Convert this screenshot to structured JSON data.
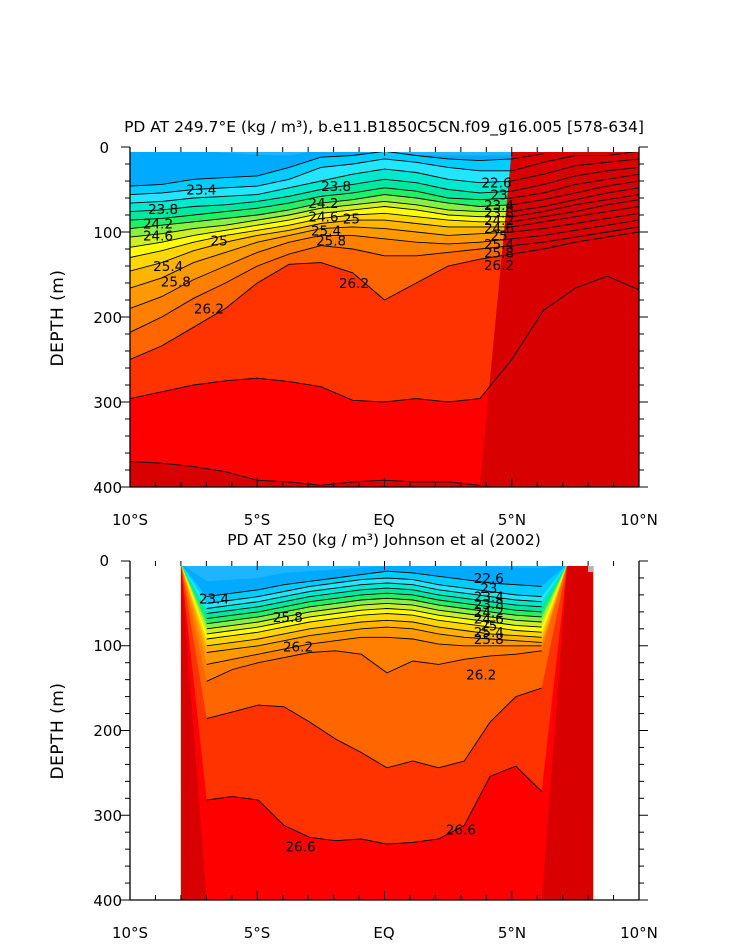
{
  "chart_data": [
    {
      "type": "contour",
      "title": "PD AT 249.7°E (kg / m³), b.e11.B1850C5CN.f09_g16.005 [578-634]",
      "ylabel": "DEPTH (m)",
      "xlabel": "",
      "x_ticks": [
        "10°S",
        "5°S",
        "EQ",
        "5°N",
        "10°N"
      ],
      "y_ticks": [
        "0",
        "100",
        "200",
        "300",
        "400"
      ],
      "xlim": [
        -10,
        10
      ],
      "ylim": [
        400,
        0
      ],
      "fill_xlim": [
        -10,
        10
      ],
      "bands": [
        {
          "depths": [
            -1,
            1,
            4,
            7,
            9,
            10,
            -1,
            -1,
            -1,
            10,
            10,
            10,
            10,
            9,
            -1,
            -1,
            -1
          ],
          "color": "#00aaff"
        },
        {
          "depths": [
            46,
            44,
            38,
            36,
            34,
            24,
            12,
            10,
            5,
            10,
            14,
            16,
            14,
            8,
            -1,
            -1,
            -1
          ],
          "color": "#00ccff"
        },
        {
          "depths": [
            56,
            54,
            50,
            48,
            46,
            38,
            24,
            20,
            14,
            18,
            24,
            28,
            28,
            18,
            10,
            10,
            5
          ],
          "color": "#22e5ff"
        },
        {
          "depths": [
            66,
            64,
            60,
            58,
            56,
            48,
            40,
            32,
            26,
            30,
            38,
            42,
            40,
            32,
            22,
            18,
            14
          ],
          "color": "#00e8d0"
        },
        {
          "depths": [
            76,
            74,
            70,
            68,
            64,
            58,
            50,
            44,
            38,
            42,
            50,
            54,
            52,
            44,
            34,
            28,
            24
          ],
          "color": "#00e8a0"
        },
        {
          "depths": [
            86,
            84,
            80,
            76,
            72,
            66,
            58,
            54,
            48,
            52,
            60,
            62,
            60,
            54,
            44,
            38,
            32
          ],
          "color": "#22ee66"
        },
        {
          "depths": [
            96,
            92,
            88,
            84,
            80,
            74,
            66,
            62,
            56,
            60,
            66,
            70,
            68,
            62,
            54,
            46,
            40
          ],
          "color": "#88f044"
        },
        {
          "depths": [
            106,
            102,
            96,
            92,
            86,
            80,
            72,
            68,
            64,
            68,
            74,
            76,
            76,
            70,
            62,
            54,
            48
          ],
          "color": "#ccf022"
        },
        {
          "depths": [
            118,
            112,
            104,
            98,
            92,
            86,
            78,
            74,
            70,
            74,
            80,
            82,
            82,
            76,
            68,
            62,
            56
          ],
          "color": "#ffff00"
        },
        {
          "depths": [
            130,
            122,
            112,
            104,
            98,
            92,
            84,
            80,
            78,
            82,
            86,
            88,
            88,
            82,
            76,
            68,
            62
          ],
          "color": "#ffd700"
        },
        {
          "depths": [
            146,
            136,
            122,
            112,
            104,
            98,
            90,
            86,
            86,
            90,
            94,
            94,
            94,
            88,
            82,
            76,
            70
          ],
          "color": "#ffb400"
        },
        {
          "depths": [
            166,
            154,
            136,
            124,
            112,
            104,
            96,
            94,
            96,
            100,
            104,
            102,
            100,
            96,
            90,
            84,
            78
          ],
          "color": "#ff9900"
        },
        {
          "depths": [
            190,
            176,
            156,
            140,
            124,
            112,
            104,
            104,
            108,
            112,
            114,
            112,
            108,
            104,
            98,
            92,
            86
          ],
          "color": "#ff8000"
        },
        {
          "depths": [
            218,
            200,
            178,
            160,
            140,
            126,
            116,
            120,
            128,
            128,
            124,
            120,
            116,
            112,
            106,
            100,
            94
          ],
          "color": "#ff6600"
        },
        {
          "depths": [
            250,
            234,
            212,
            190,
            160,
            138,
            136,
            148,
            180,
            160,
            140,
            132,
            126,
            120,
            112,
            106,
            100
          ],
          "color": "#ff3300"
        },
        {
          "depths": [
            296,
            288,
            280,
            275,
            272,
            276,
            282,
            298,
            300,
            296,
            300,
            296,
            250,
            192,
            166,
            152,
            168
          ],
          "color": "#ff0000"
        },
        {
          "depths": [
            370,
            372,
            376,
            382,
            392,
            394,
            398,
            394,
            392,
            394,
            394,
            398,
            -1,
            -1,
            -1,
            -1,
            -1
          ],
          "color": "#d80000"
        },
        {
          "depths": [
            402,
            402,
            402,
            402,
            402,
            402,
            402,
            402,
            402,
            402,
            402,
            402,
            402,
            402,
            402,
            402,
            402
          ],
          "color": "#c00000"
        }
      ],
      "top_band_color": "#1eb4ff",
      "contour_levels": [
        "23.4",
        "23.8",
        "24.2",
        "24.6",
        "25",
        "25.4",
        "25.8",
        "26.2",
        "22.6",
        "23",
        "23.4",
        "23.8",
        "24.2",
        "24.6",
        "25",
        "25.4",
        "25.8",
        "26.2"
      ],
      "labels": [
        {
          "text": "23.4",
          "x": -7.2,
          "y": 50
        },
        {
          "text": "23.8",
          "x": -8.7,
          "y": 73
        },
        {
          "text": "24.2",
          "x": -8.9,
          "y": 90
        },
        {
          "text": "24.6",
          "x": -8.9,
          "y": 104
        },
        {
          "text": "25",
          "x": -6.5,
          "y": 110
        },
        {
          "text": "25.4",
          "x": -8.5,
          "y": 140
        },
        {
          "text": "25.8",
          "x": -8.2,
          "y": 158
        },
        {
          "text": "26.2",
          "x": -6.9,
          "y": 190
        },
        {
          "text": "23.8",
          "x": -1.9,
          "y": 46
        },
        {
          "text": "24.2",
          "x": -2.4,
          "y": 66
        },
        {
          "text": "24.6",
          "x": -2.4,
          "y": 82
        },
        {
          "text": "25",
          "x": -1.3,
          "y": 84
        },
        {
          "text": "25.4",
          "x": -2.3,
          "y": 98
        },
        {
          "text": "25.8",
          "x": -2.1,
          "y": 110
        },
        {
          "text": "26.2",
          "x": -1.2,
          "y": 160
        },
        {
          "text": "22.6",
          "x": 4.4,
          "y": 42
        },
        {
          "text": "23",
          "x": 4.5,
          "y": 56
        },
        {
          "text": "23.4",
          "x": 4.5,
          "y": 68
        },
        {
          "text": "23.8",
          "x": 4.5,
          "y": 77
        },
        {
          "text": "24.2",
          "x": 4.5,
          "y": 86
        },
        {
          "text": "24.6",
          "x": 4.5,
          "y": 95
        },
        {
          "text": "25",
          "x": 4.5,
          "y": 104
        },
        {
          "text": "25.4",
          "x": 4.5,
          "y": 114
        },
        {
          "text": "25.8",
          "x": 4.5,
          "y": 124
        },
        {
          "text": "26.2",
          "x": 4.5,
          "y": 139
        }
      ]
    },
    {
      "type": "contour",
      "title": "PD AT 250 (kg / m³) Johnson et al (2002)",
      "ylabel": "DEPTH (m)",
      "xlabel": "",
      "x_ticks": [
        "10°S",
        "5°S",
        "EQ",
        "5°N",
        "10°N"
      ],
      "y_ticks": [
        "0",
        "100",
        "200",
        "300",
        "400"
      ],
      "xlim": [
        -10,
        10
      ],
      "ylim": [
        400,
        0
      ],
      "fill_xlim": [
        -8,
        8.2
      ],
      "bands": [
        {
          "depths": [
            -1,
            24,
            22,
            20,
            14,
            12,
            10,
            8,
            6,
            4,
            4,
            6,
            6,
            8,
            8,
            -1,
            -1
          ],
          "color": "#00aaff"
        },
        {
          "depths": [
            -1,
            42,
            38,
            34,
            28,
            24,
            20,
            16,
            12,
            14,
            18,
            22,
            26,
            28,
            30,
            -1,
            -1
          ],
          "color": "#00ccff"
        },
        {
          "depths": [
            -1,
            50,
            46,
            42,
            36,
            30,
            26,
            22,
            20,
            22,
            28,
            32,
            36,
            40,
            42,
            -1,
            -1
          ],
          "color": "#22e5ff"
        },
        {
          "depths": [
            -1,
            56,
            52,
            48,
            42,
            36,
            32,
            28,
            26,
            28,
            34,
            38,
            42,
            46,
            48,
            -1,
            -1
          ],
          "color": "#00e8d0"
        },
        {
          "depths": [
            -1,
            62,
            58,
            54,
            48,
            42,
            38,
            34,
            32,
            34,
            40,
            44,
            48,
            52,
            54,
            -1,
            -1
          ],
          "color": "#00e8a0"
        },
        {
          "depths": [
            -1,
            68,
            64,
            60,
            54,
            48,
            44,
            40,
            38,
            40,
            46,
            50,
            54,
            58,
            60,
            -1,
            -1
          ],
          "color": "#22ee66"
        },
        {
          "depths": [
            -1,
            74,
            70,
            66,
            60,
            54,
            50,
            46,
            44,
            46,
            52,
            56,
            60,
            64,
            66,
            -1,
            -1
          ],
          "color": "#88f044"
        },
        {
          "depths": [
            -1,
            80,
            76,
            72,
            66,
            60,
            56,
            52,
            50,
            52,
            58,
            62,
            66,
            70,
            72,
            -1,
            -1
          ],
          "color": "#ccf022"
        },
        {
          "depths": [
            -1,
            86,
            82,
            78,
            72,
            66,
            62,
            58,
            56,
            58,
            64,
            68,
            72,
            76,
            78,
            -1,
            -1
          ],
          "color": "#ffff00"
        },
        {
          "depths": [
            -1,
            92,
            88,
            84,
            78,
            72,
            68,
            64,
            62,
            64,
            70,
            74,
            78,
            82,
            84,
            -1,
            -1
          ],
          "color": "#ffd700"
        },
        {
          "depths": [
            -1,
            100,
            96,
            92,
            86,
            80,
            76,
            72,
            70,
            72,
            78,
            82,
            86,
            88,
            90,
            -1,
            -1
          ],
          "color": "#ffb400"
        },
        {
          "depths": [
            -1,
            108,
            104,
            100,
            94,
            88,
            84,
            80,
            78,
            80,
            86,
            90,
            92,
            94,
            96,
            -1,
            -1
          ],
          "color": "#ff9900"
        },
        {
          "depths": [
            -1,
            122,
            116,
            110,
            104,
            98,
            94,
            90,
            90,
            92,
            98,
            100,
            100,
            100,
            100,
            -1,
            -1
          ],
          "color": "#ff8000"
        },
        {
          "depths": [
            -1,
            142,
            128,
            120,
            114,
            108,
            106,
            110,
            132,
            118,
            122,
            116,
            112,
            110,
            106,
            -1,
            -1
          ],
          "color": "#ff6600"
        },
        {
          "depths": [
            -1,
            186,
            178,
            170,
            172,
            190,
            210,
            226,
            244,
            236,
            244,
            236,
            190,
            160,
            150,
            -1,
            -1
          ],
          "color": "#ff3300"
        },
        {
          "depths": [
            -1,
            282,
            278,
            282,
            312,
            326,
            330,
            328,
            334,
            332,
            328,
            312,
            254,
            242,
            272,
            -1,
            -1
          ],
          "color": "#ff0000"
        },
        {
          "depths": [
            -1,
            402,
            402,
            402,
            402,
            402,
            402,
            402,
            402,
            402,
            402,
            402,
            402,
            402,
            402,
            -1,
            -1
          ],
          "color": "#d80000"
        }
      ],
      "top_band_color": "#1eb4ff",
      "contour_levels": [
        "23.4",
        "25.8",
        "26.2",
        "22.6",
        "23",
        "23.4",
        "23.8",
        "24.2",
        "24.6",
        "25",
        "25.4",
        "25.8",
        "26.2",
        "26.6",
        "26.6"
      ],
      "labels": [
        {
          "text": "23.4",
          "x": -6.7,
          "y": 44
        },
        {
          "text": "25.8",
          "x": -3.8,
          "y": 66
        },
        {
          "text": "26.2",
          "x": -3.4,
          "y": 101
        },
        {
          "text": "22.6",
          "x": 4.1,
          "y": 20
        },
        {
          "text": "23",
          "x": 4.1,
          "y": 32
        },
        {
          "text": "23.4",
          "x": 4.1,
          "y": 42
        },
        {
          "text": "23.8",
          "x": 4.1,
          "y": 51
        },
        {
          "text": "24.2",
          "x": 4.1,
          "y": 60
        },
        {
          "text": "24.6",
          "x": 4.1,
          "y": 68
        },
        {
          "text": "25",
          "x": 4.1,
          "y": 76
        },
        {
          "text": "25.4",
          "x": 4.1,
          "y": 84
        },
        {
          "text": "25.8",
          "x": 4.1,
          "y": 92
        },
        {
          "text": "26.2",
          "x": 3.8,
          "y": 134
        },
        {
          "text": "26.6",
          "x": 3.0,
          "y": 317
        },
        {
          "text": "26.6",
          "x": -3.3,
          "y": 337
        }
      ]
    }
  ],
  "colors": {
    "grey_patch": "#b4b4b4"
  }
}
